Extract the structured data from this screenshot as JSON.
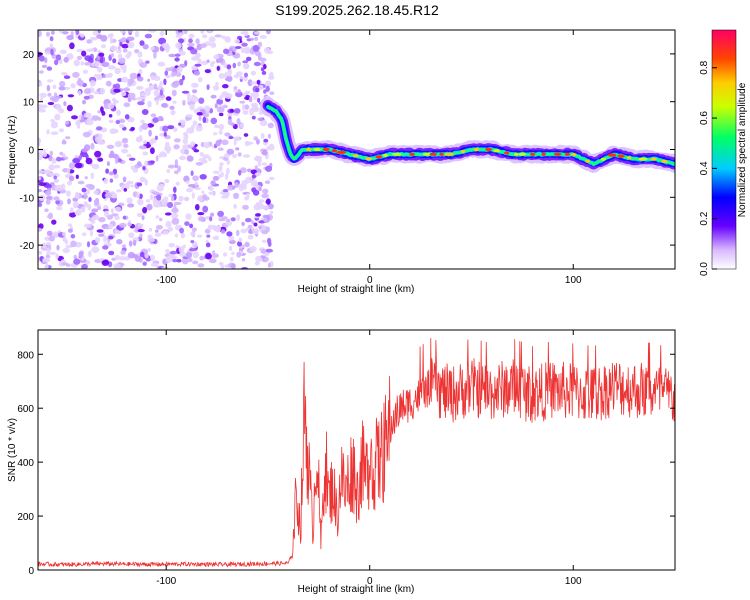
{
  "title": "S199.2025.262.18.45.R12",
  "chart_data": [
    {
      "type": "heatmap",
      "name": "spectrogram",
      "xlabel": "Height of straight line (km)",
      "ylabel": "Frequency (Hz)",
      "xlim": [
        -163,
        150
      ],
      "ylim": [
        -25,
        25
      ],
      "xticks": [
        "-100",
        "0",
        "100"
      ],
      "yticks": [
        "20",
        "10",
        "0",
        "-10",
        "-20"
      ],
      "noise_region_x": [
        -163,
        -50
      ],
      "ridge": {
        "x": [
          -50,
          -46,
          -43,
          -41,
          -39,
          -37,
          -33,
          -28,
          -20,
          -10,
          0,
          10,
          20,
          30,
          40,
          50,
          60,
          70,
          80,
          90,
          100,
          110,
          120,
          130,
          140,
          150
        ],
        "y": [
          9,
          8,
          6,
          2,
          -1,
          -2,
          0,
          0,
          0,
          -1,
          -2,
          -1,
          -1,
          -1,
          -1,
          0,
          0,
          -1,
          -1,
          -1,
          -1,
          -3,
          -1,
          -2,
          -2,
          -3
        ]
      },
      "colorbar": {
        "label": "Normalized spectral amplitude",
        "ticks": [
          "0.0",
          "0.2",
          "0.4",
          "0.6",
          "0.8"
        ],
        "range": [
          0,
          0.95
        ]
      }
    },
    {
      "type": "line",
      "name": "snr",
      "xlabel": "Height of straight line (km)",
      "ylabel": "SNR (10 * v/v)",
      "xlim": [
        -163,
        150
      ],
      "ylim": [
        0,
        890
      ],
      "xticks": [
        "-100",
        "0",
        "100"
      ],
      "yticks": [
        "0",
        "200",
        "400",
        "600",
        "800"
      ],
      "color": "#ee3333",
      "series": [
        {
          "name": "SNR",
          "x": [
            -163,
            -150,
            -130,
            -110,
            -90,
            -70,
            -50,
            -40,
            -38,
            -36,
            -34,
            -32,
            -30,
            -28,
            -26,
            -24,
            -22,
            -20,
            -18,
            -16,
            -14,
            -12,
            -10,
            -8,
            -6,
            -4,
            -2,
            0,
            2,
            4,
            6,
            8,
            10,
            12,
            15,
            20,
            25,
            30,
            40,
            50,
            60,
            70,
            80,
            90,
            100,
            110,
            120,
            130,
            140,
            150
          ],
          "values": [
            22,
            20,
            23,
            21,
            22,
            20,
            24,
            25,
            60,
            300,
            150,
            610,
            380,
            150,
            480,
            90,
            420,
            260,
            320,
            190,
            360,
            280,
            350,
            380,
            280,
            400,
            340,
            420,
            380,
            400,
            420,
            460,
            520,
            560,
            600,
            620,
            650,
            680,
            650,
            680,
            660,
            680,
            650,
            670,
            660,
            650,
            680,
            670,
            660,
            640
          ]
        }
      ]
    }
  ]
}
